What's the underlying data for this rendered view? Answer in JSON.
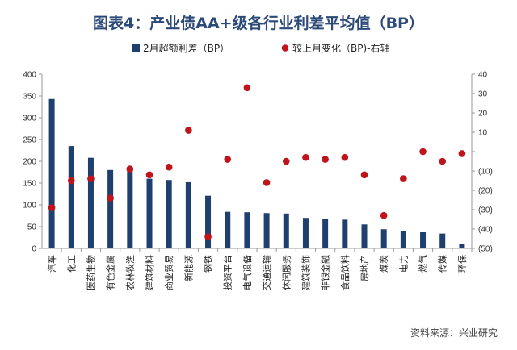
{
  "title": "图表4：产业债AA+级各行业利差平均值（BP）",
  "source": "资料来源：兴业研究",
  "colors": {
    "bar": "#1f3f6e",
    "dot": "#c0141c",
    "axis": "#999999",
    "title": "#2c4a78"
  },
  "chart_data": {
    "type": "bar",
    "categories": [
      "汽车",
      "化工",
      "医药生物",
      "有色金属",
      "农林牧渔",
      "建筑材料",
      "商业贸易",
      "新能源",
      "钢铁",
      "投资平台",
      "电气设备",
      "交通运输",
      "休闲服务",
      "建筑装饰",
      "非银金融",
      "食品饮料",
      "房地产",
      "煤炭",
      "电力",
      "燃气",
      "传媒",
      "环保"
    ],
    "series": [
      {
        "name": "2月超额利差（BP）",
        "type": "bar",
        "axis": "left",
        "values": [
          343,
          235,
          208,
          180,
          180,
          160,
          157,
          152,
          121,
          84,
          83,
          81,
          80,
          70,
          67,
          66,
          55,
          44,
          39,
          37,
          34,
          10
        ]
      },
      {
        "name": "较上月变化（BP)-右轴",
        "type": "scatter",
        "axis": "right",
        "values": [
          -29,
          -15,
          -14,
          -24,
          -9,
          -12,
          -8,
          11,
          -44,
          -4,
          33,
          -16,
          -5,
          -3,
          -4,
          -3,
          -12,
          -33,
          -14,
          0,
          -5,
          -1
        ]
      }
    ],
    "left_axis": {
      "ylim": [
        0,
        400
      ],
      "ticks": [
        "0",
        "50",
        "100",
        "150",
        "200",
        "250",
        "300",
        "350",
        "400"
      ]
    },
    "right_axis": {
      "ylim": [
        -50,
        40
      ],
      "ticks": [
        "(50)",
        "(40)",
        "(30)",
        "(20)",
        "(10)",
        "-",
        "10",
        "20",
        "30",
        "40"
      ]
    },
    "legend_position": "top",
    "grid": false
  }
}
